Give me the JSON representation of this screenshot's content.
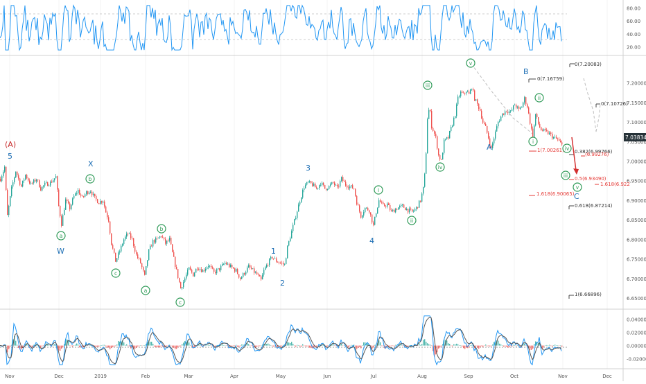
{
  "chart_data": [
    {
      "panel": "rsi",
      "type": "line",
      "y_axis_ticks": [
        "80.00",
        "60.00",
        "40.00",
        "20.00"
      ],
      "ylim": [
        13,
        86
      ],
      "guide_levels": [
        70,
        30
      ],
      "series": [
        {
          "color": "#2196f3"
        }
      ]
    },
    {
      "panel": "price",
      "type": "line",
      "y_axis_ticks": [
        "7.20000",
        "7.15000",
        "7.10000",
        "7.05000",
        "7.00000",
        "6.95000",
        "6.90000",
        "6.85000",
        "6.80000",
        "6.75000",
        "6.70000",
        "6.65000"
      ],
      "ylim": [
        6.636,
        7.24
      ],
      "last_price": "7.03834",
      "x_tick_labels": [
        "Nov",
        "Dec",
        "2019",
        "Feb",
        "Mar",
        "Apr",
        "May",
        "Jun",
        "Jul",
        "Aug",
        "Sep",
        "Oct",
        "Nov",
        "Dec"
      ],
      "series": [
        {
          "x": 0,
          "y": 6.955
        },
        {
          "x": 6,
          "y": 6.985
        },
        {
          "x": 10,
          "y": 6.86
        },
        {
          "x": 16,
          "y": 6.93
        },
        {
          "x": 22,
          "y": 6.975
        },
        {
          "x": 30,
          "y": 6.935
        },
        {
          "x": 36,
          "y": 6.965
        },
        {
          "x": 44,
          "y": 6.94
        },
        {
          "x": 52,
          "y": 6.955
        },
        {
          "x": 58,
          "y": 6.93
        },
        {
          "x": 64,
          "y": 6.94
        },
        {
          "x": 72,
          "y": 6.945
        },
        {
          "x": 80,
          "y": 6.96
        },
        {
          "x": 84,
          "y": 6.885
        },
        {
          "x": 88,
          "y": 6.84
        },
        {
          "x": 94,
          "y": 6.9
        },
        {
          "x": 100,
          "y": 6.88
        },
        {
          "x": 106,
          "y": 6.91
        },
        {
          "x": 112,
          "y": 6.925
        },
        {
          "x": 118,
          "y": 6.905
        },
        {
          "x": 124,
          "y": 6.92
        },
        {
          "x": 130,
          "y": 6.925
        },
        {
          "x": 136,
          "y": 6.905
        },
        {
          "x": 142,
          "y": 6.895
        },
        {
          "x": 148,
          "y": 6.9
        },
        {
          "x": 152,
          "y": 6.87
        },
        {
          "x": 156,
          "y": 6.85
        },
        {
          "x": 160,
          "y": 6.79
        },
        {
          "x": 166,
          "y": 6.745
        },
        {
          "x": 172,
          "y": 6.77
        },
        {
          "x": 178,
          "y": 6.8
        },
        {
          "x": 184,
          "y": 6.815
        },
        {
          "x": 190,
          "y": 6.8
        },
        {
          "x": 196,
          "y": 6.76
        },
        {
          "x": 202,
          "y": 6.74
        },
        {
          "x": 208,
          "y": 6.705
        },
        {
          "x": 214,
          "y": 6.77
        },
        {
          "x": 220,
          "y": 6.795
        },
        {
          "x": 226,
          "y": 6.8
        },
        {
          "x": 232,
          "y": 6.81
        },
        {
          "x": 238,
          "y": 6.79
        },
        {
          "x": 244,
          "y": 6.8
        },
        {
          "x": 248,
          "y": 6.765
        },
        {
          "x": 254,
          "y": 6.72
        },
        {
          "x": 260,
          "y": 6.675
        },
        {
          "x": 266,
          "y": 6.7
        },
        {
          "x": 272,
          "y": 6.725
        },
        {
          "x": 278,
          "y": 6.71
        },
        {
          "x": 284,
          "y": 6.73
        },
        {
          "x": 292,
          "y": 6.72
        },
        {
          "x": 300,
          "y": 6.735
        },
        {
          "x": 308,
          "y": 6.715
        },
        {
          "x": 316,
          "y": 6.725
        },
        {
          "x": 324,
          "y": 6.74
        },
        {
          "x": 332,
          "y": 6.73
        },
        {
          "x": 340,
          "y": 6.72
        },
        {
          "x": 346,
          "y": 6.7
        },
        {
          "x": 352,
          "y": 6.715
        },
        {
          "x": 358,
          "y": 6.73
        },
        {
          "x": 364,
          "y": 6.72
        },
        {
          "x": 370,
          "y": 6.71
        },
        {
          "x": 376,
          "y": 6.695
        },
        {
          "x": 380,
          "y": 6.72
        },
        {
          "x": 386,
          "y": 6.74
        },
        {
          "x": 392,
          "y": 6.755
        },
        {
          "x": 398,
          "y": 6.745
        },
        {
          "x": 404,
          "y": 6.74
        },
        {
          "x": 410,
          "y": 6.735
        },
        {
          "x": 414,
          "y": 6.78
        },
        {
          "x": 420,
          "y": 6.82
        },
        {
          "x": 426,
          "y": 6.86
        },
        {
          "x": 432,
          "y": 6.9
        },
        {
          "x": 438,
          "y": 6.935
        },
        {
          "x": 444,
          "y": 6.945
        },
        {
          "x": 450,
          "y": 6.94
        },
        {
          "x": 456,
          "y": 6.93
        },
        {
          "x": 462,
          "y": 6.945
        },
        {
          "x": 468,
          "y": 6.93
        },
        {
          "x": 474,
          "y": 6.935
        },
        {
          "x": 480,
          "y": 6.945
        },
        {
          "x": 486,
          "y": 6.93
        },
        {
          "x": 492,
          "y": 6.955
        },
        {
          "x": 498,
          "y": 6.94
        },
        {
          "x": 504,
          "y": 6.935
        },
        {
          "x": 510,
          "y": 6.93
        },
        {
          "x": 514,
          "y": 6.895
        },
        {
          "x": 520,
          "y": 6.86
        },
        {
          "x": 526,
          "y": 6.88
        },
        {
          "x": 532,
          "y": 6.875
        },
        {
          "x": 538,
          "y": 6.835
        },
        {
          "x": 542,
          "y": 6.87
        },
        {
          "x": 546,
          "y": 6.9
        },
        {
          "x": 552,
          "y": 6.885
        },
        {
          "x": 558,
          "y": 6.89
        },
        {
          "x": 564,
          "y": 6.87
        },
        {
          "x": 572,
          "y": 6.88
        },
        {
          "x": 580,
          "y": 6.885
        },
        {
          "x": 588,
          "y": 6.875
        },
        {
          "x": 594,
          "y": 6.87
        },
        {
          "x": 600,
          "y": 6.88
        },
        {
          "x": 606,
          "y": 6.9
        },
        {
          "x": 610,
          "y": 6.93
        },
        {
          "x": 613,
          "y": 6.98
        },
        {
          "x": 616,
          "y": 7.11
        },
        {
          "x": 619,
          "y": 7.14
        },
        {
          "x": 622,
          "y": 7.09
        },
        {
          "x": 628,
          "y": 7.06
        },
        {
          "x": 632,
          "y": 7.015
        },
        {
          "x": 636,
          "y": 7.0
        },
        {
          "x": 640,
          "y": 7.05
        },
        {
          "x": 646,
          "y": 7.06
        },
        {
          "x": 652,
          "y": 7.095
        },
        {
          "x": 656,
          "y": 7.12
        },
        {
          "x": 660,
          "y": 7.16
        },
        {
          "x": 664,
          "y": 7.175
        },
        {
          "x": 668,
          "y": 7.17
        },
        {
          "x": 672,
          "y": 7.18
        },
        {
          "x": 676,
          "y": 7.17
        },
        {
          "x": 680,
          "y": 7.19
        },
        {
          "x": 684,
          "y": 7.16
        },
        {
          "x": 688,
          "y": 7.145
        },
        {
          "x": 692,
          "y": 7.13
        },
        {
          "x": 696,
          "y": 7.1
        },
        {
          "x": 700,
          "y": 7.085
        },
        {
          "x": 704,
          "y": 7.06
        },
        {
          "x": 708,
          "y": 7.03
        },
        {
          "x": 712,
          "y": 7.06
        },
        {
          "x": 718,
          "y": 7.1
        },
        {
          "x": 724,
          "y": 7.12
        },
        {
          "x": 730,
          "y": 7.13
        },
        {
          "x": 736,
          "y": 7.125
        },
        {
          "x": 742,
          "y": 7.145
        },
        {
          "x": 748,
          "y": 7.13
        },
        {
          "x": 752,
          "y": 7.14
        },
        {
          "x": 756,
          "y": 7.16
        },
        {
          "x": 760,
          "y": 7.14
        },
        {
          "x": 764,
          "y": 7.1
        },
        {
          "x": 768,
          "y": 7.06
        },
        {
          "x": 772,
          "y": 7.12
        },
        {
          "x": 776,
          "y": 7.095
        },
        {
          "x": 780,
          "y": 7.08
        },
        {
          "x": 786,
          "y": 7.075
        },
        {
          "x": 792,
          "y": 7.07
        },
        {
          "x": 798,
          "y": 7.06
        },
        {
          "x": 804,
          "y": 7.055
        },
        {
          "x": 808,
          "y": 7.045
        },
        {
          "x": 811,
          "y": 7.038
        }
      ]
    },
    {
      "panel": "oscillator",
      "type": "line",
      "y_axis_ticks": [
        "0.04000",
        "0.02000",
        "0.00000",
        "-0.02000"
      ],
      "ylim": [
        -0.031,
        0.049
      ]
    }
  ],
  "waves": {
    "A_paren": "(A)",
    "five": "5",
    "W": "W",
    "X": "X",
    "one": "1",
    "two": "2",
    "three": "3",
    "four": "4",
    "A": "A",
    "B": "B",
    "C": "C",
    "circ_a1": "a",
    "circ_b1": "b",
    "circ_c1": "c",
    "circ_a2": "a",
    "circ_b2": "b",
    "circ_c2": "c",
    "circ_i1": "i",
    "circ_ii1": "ii",
    "circ_iii1": "iii",
    "circ_iv1": "iv",
    "circ_v1": "v",
    "circ_i2": "i",
    "circ_ii2": "ii",
    "circ_iii2": "iii",
    "circ_iv2": "iv",
    "circ_v2": "v"
  },
  "fib": {
    "f0_top": "0(7.20083)",
    "f0_b": "0(7.16759)",
    "f0_c": "0(7.10726)",
    "f1_red": "1(7.00261)",
    "f0382": "0.382(6.99766)",
    "f0_red": "(6.99276)",
    "f05": "0.5(6.93490)",
    "f1618_red": "1.618(6.922",
    "f1618_left": "1.618(6.90065)",
    "f0618": "0.618(6.87214)",
    "f1_bottom": "1(6.66896)"
  },
  "colors": {
    "up": "#26a69a",
    "down": "#ef5350",
    "rsi": "#2196f3",
    "wave_blue": "#1e6fb5",
    "wave_red": "#c62828",
    "wave_green": "#2e9a57",
    "fib_red": "#e53935",
    "fib_gray": "#444444"
  }
}
